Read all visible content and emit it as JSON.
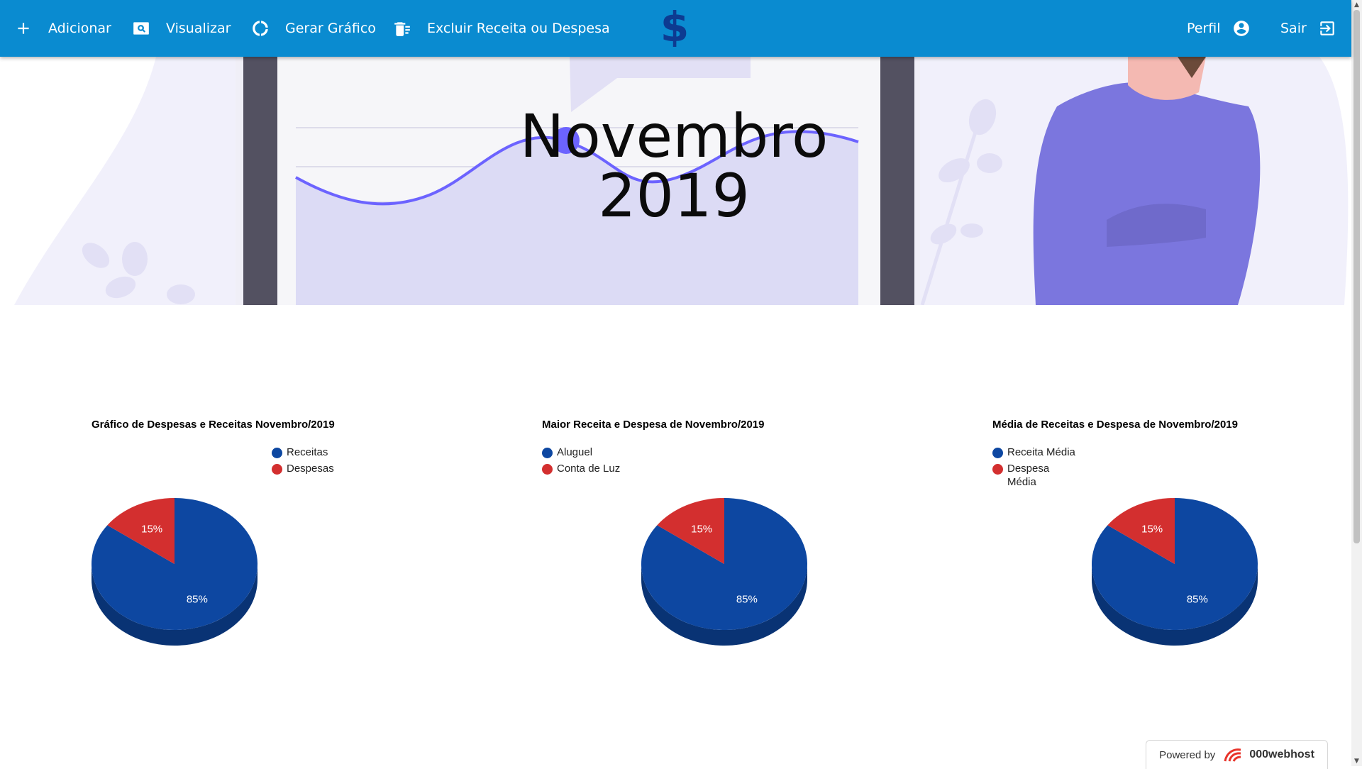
{
  "navbar": {
    "items": [
      {
        "label": "Adicionar",
        "icon": "plus-icon"
      },
      {
        "label": "Visualizar",
        "icon": "search-icon"
      },
      {
        "label": "Gerar Gráfico",
        "icon": "donut-chart-icon"
      },
      {
        "label": "Excluir Receita ou Despesa",
        "icon": "delete-list-icon"
      }
    ],
    "logo": "dollar-logo-icon",
    "profile_label": "Perfil",
    "logout_label": "Sair",
    "color": "#0a8bd0"
  },
  "hero": {
    "title_line1": "Novembro",
    "title_line2": "2019"
  },
  "chart_data": [
    {
      "type": "pie",
      "title": "Gráfico de Despesas e Receitas Novembro/2019",
      "slices": [
        {
          "name": "Receitas",
          "value": 85,
          "label": "85%",
          "color": "#0d47a1"
        },
        {
          "name": "Despesas",
          "value": 15,
          "label": "15%",
          "color": "#d32f2f"
        }
      ],
      "legend_position": "top-right"
    },
    {
      "type": "pie",
      "title": "Maior Receita e Despesa de Novembro/2019",
      "slices": [
        {
          "name": "Aluguel",
          "value": 85,
          "label": "85%",
          "color": "#0d47a1"
        },
        {
          "name": "Conta de Luz",
          "value": 15,
          "label": "15%",
          "color": "#d32f2f"
        }
      ],
      "legend_position": "top-left"
    },
    {
      "type": "pie",
      "title": "Média de Receitas e Despesa de Novembro/2019",
      "slices": [
        {
          "name": "Receita Média",
          "value": 85,
          "label": "85%",
          "color": "#0d47a1"
        },
        {
          "name": "Despesa Média",
          "value": 15,
          "label": "15%",
          "color": "#d32f2f"
        }
      ],
      "legend_position": "top-left"
    }
  ],
  "footer": {
    "powered_by": "Powered by",
    "brand": "000webhost"
  }
}
